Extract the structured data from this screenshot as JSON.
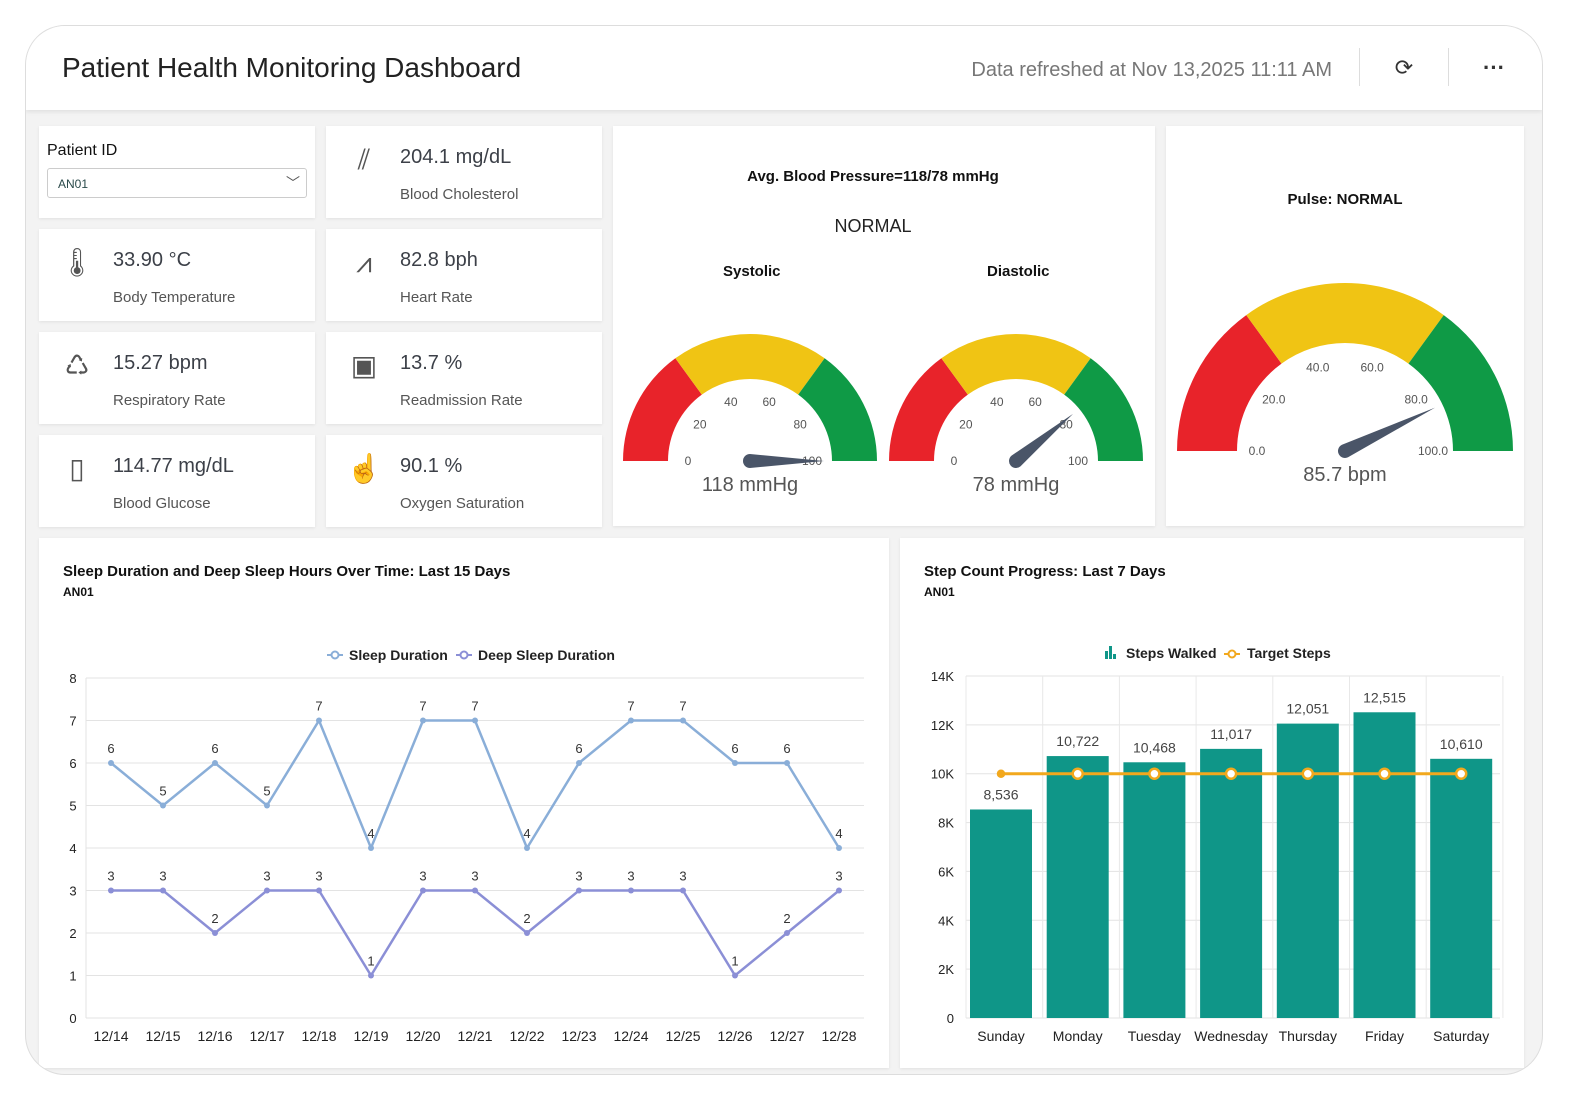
{
  "header": {
    "title": "Patient Health Monitoring Dashboard",
    "refreshed": "Data refreshed at Nov 13,2025 11:11 AM",
    "refresh_icon": "refresh-icon",
    "more_icon": "more-icon"
  },
  "patient": {
    "label": "Patient ID",
    "value": "AN01"
  },
  "kpis": [
    {
      "value": "204.1 mg/dL",
      "label": "Blood Cholesterol",
      "icon": "artery-icon"
    },
    {
      "value": "33.90 °C",
      "label": "Body Temperature",
      "icon": "thermometer-icon"
    },
    {
      "value": "82.8 bph",
      "label": "Heart Rate",
      "icon": "heartbeat-icon"
    },
    {
      "value": "15.27 bpm",
      "label": "Respiratory Rate",
      "icon": "lungs-icon"
    },
    {
      "value": "13.7 %",
      "label": "Readmission Rate",
      "icon": "iv-bag-icon"
    },
    {
      "value": "114.77 mg/dL",
      "label": "Blood Glucose",
      "icon": "glucose-meter-icon"
    },
    {
      "value": "90.1 %",
      "label": "Oxygen Saturation",
      "icon": "pulse-oximeter-icon"
    }
  ],
  "bp": {
    "title": "Avg. Blood Pressure=118/78 mmHg",
    "status": "NORMAL",
    "systolic": {
      "label": "Systolic",
      "value": 118,
      "text": "118 mmHg"
    },
    "diastolic": {
      "label": "Diastolic",
      "value": 78,
      "text": "78 mmHg"
    },
    "ticks": [
      "0",
      "20",
      "40",
      "60",
      "80",
      "100"
    ]
  },
  "pulse": {
    "title": "Pulse: NORMAL",
    "value": 85.7,
    "text": "85.7 bpm",
    "ticks": [
      "0.0",
      "20.0",
      "40.0",
      "60.0",
      "80.0",
      "100.0"
    ]
  },
  "gauge_colors": {
    "low": "#e8232a",
    "mid": "#f0c414",
    "high": "#0f9a46",
    "needle": "#4a5568"
  },
  "gauge_bands": [
    0,
    30,
    70,
    100
  ],
  "chart_data": [
    {
      "type": "line",
      "title": "Sleep Duration and Deep Sleep Hours Over Time: Last 15 Days",
      "subtitle": "AN01",
      "categories": [
        "12/14",
        "12/15",
        "12/16",
        "12/17",
        "12/18",
        "12/19",
        "12/20",
        "12/21",
        "12/22",
        "12/23",
        "12/24",
        "12/25",
        "12/26",
        "12/27",
        "12/28"
      ],
      "series": [
        {
          "name": "Sleep Duration",
          "color": "#8aaed8",
          "values": [
            6,
            5,
            6,
            5,
            7,
            4,
            7,
            7,
            4,
            6,
            7,
            7,
            6,
            6,
            4
          ]
        },
        {
          "name": "Deep Sleep Duration",
          "color": "#8b8fd6",
          "values": [
            3,
            3,
            2,
            3,
            3,
            1,
            3,
            3,
            2,
            3,
            3,
            3,
            1,
            2,
            3
          ]
        }
      ],
      "ylim": [
        0,
        8
      ],
      "yticks": [
        "0",
        "1",
        "2",
        "3",
        "4",
        "5",
        "6",
        "7",
        "8"
      ],
      "legend": "top"
    },
    {
      "type": "bar",
      "title": "Step Count Progress: Last 7 Days",
      "subtitle": "AN01",
      "categories": [
        "Sunday",
        "Monday",
        "Tuesday",
        "Wednesday",
        "Thursday",
        "Friday",
        "Saturday"
      ],
      "series": [
        {
          "name": "Steps Walked",
          "color": "#0f9688",
          "values": [
            8536,
            10722,
            10468,
            11017,
            12051,
            12515,
            10610
          ],
          "labels": [
            "8,536",
            "10,722",
            "10,468",
            "11,017",
            "12,051",
            "12,515",
            "10,610"
          ]
        },
        {
          "name": "Target Steps",
          "color": "#f2a81d",
          "values": [
            10000,
            10000,
            10000,
            10000,
            10000,
            10000,
            10000
          ]
        }
      ],
      "ylim": [
        0,
        14000
      ],
      "yticks": [
        "0",
        "2K",
        "4K",
        "6K",
        "8K",
        "10K",
        "12K",
        "14K"
      ],
      "legend": "top"
    }
  ]
}
